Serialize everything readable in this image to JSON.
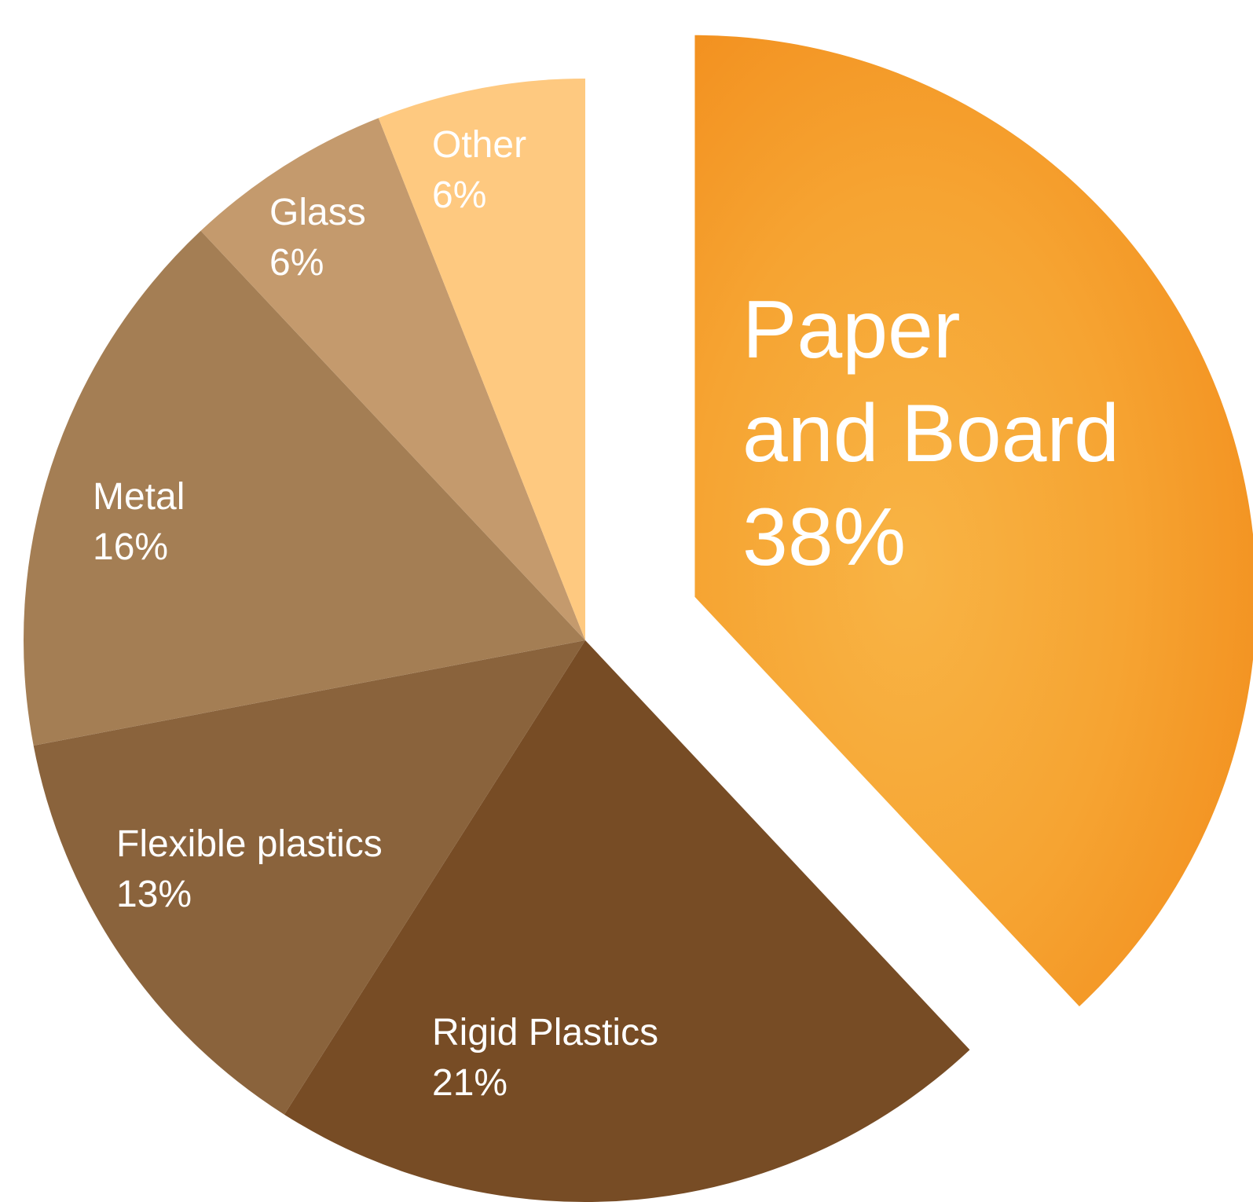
{
  "chart_data": {
    "type": "pie",
    "slices": [
      {
        "name": "Paper and Board",
        "display_lines": [
          "Paper",
          "and Board"
        ],
        "percent_label": "38%",
        "value": 38,
        "color": "#F5A032",
        "exploded": true
      },
      {
        "name": "Rigid Plastics",
        "display_lines": [
          "Rigid Plastics"
        ],
        "percent_label": "21%",
        "value": 21,
        "color": "#774C25",
        "exploded": false
      },
      {
        "name": "Flexible plastics",
        "display_lines": [
          "Flexible plastics"
        ],
        "percent_label": "13%",
        "value": 13,
        "color": "#8A633C",
        "exploded": false
      },
      {
        "name": "Metal",
        "display_lines": [
          "Metal"
        ],
        "percent_label": "16%",
        "value": 16,
        "color": "#A47E54",
        "exploded": false
      },
      {
        "name": "Glass",
        "display_lines": [
          "Glass"
        ],
        "percent_label": "6%",
        "value": 6,
        "color": "#C49A6D",
        "exploded": false
      },
      {
        "name": "Other",
        "display_lines": [
          "Other"
        ],
        "percent_label": "6%",
        "value": 6,
        "color": "#FEC980",
        "exploded": false
      }
    ],
    "start_angle_deg": 0,
    "direction": "clockwise",
    "legend": "none",
    "labels": "inside slices"
  }
}
